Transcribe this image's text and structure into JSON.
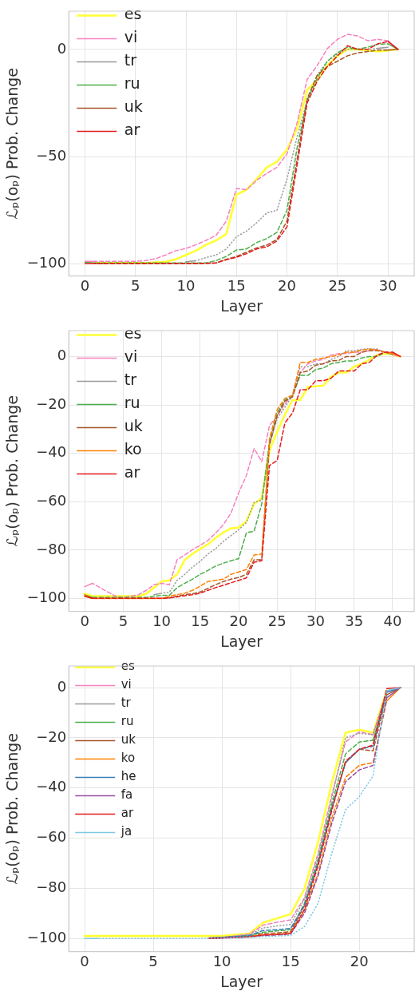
{
  "chart_data": [
    {
      "type": "line",
      "xlabel": "Layer",
      "ylabel": "ℒₚ(oₚ) Prob. Change",
      "x": [
        0,
        1,
        2,
        3,
        4,
        5,
        6,
        7,
        8,
        9,
        10,
        11,
        12,
        13,
        14,
        15,
        16,
        17,
        18,
        19,
        20,
        21,
        22,
        23,
        24,
        25,
        26,
        27,
        28,
        29,
        30,
        31
      ],
      "xlim": [
        -1.6,
        32.6
      ],
      "ylim": [
        -105.6,
        17.8
      ],
      "xticks": [
        0,
        5,
        10,
        15,
        20,
        25,
        30
      ],
      "yticks": [
        -100,
        -50,
        0
      ],
      "grid": true,
      "legend": "top left",
      "series": [
        {
          "name": "es",
          "color": "#ffff33",
          "line_style": "solid",
          "values": [
            null,
            -99.5,
            -99.5,
            -99.5,
            -99.5,
            -99.5,
            -99.5,
            -99.3,
            -99,
            -97.8,
            -95.8,
            -93.8,
            -91,
            -89,
            -86,
            -67.7,
            -65.4,
            -60.5,
            -55,
            -52.4,
            -46.7,
            -37,
            -19,
            -14,
            -7.5,
            -3,
            0,
            0,
            -0.5,
            -1,
            -0.5,
            0
          ]
        },
        {
          "name": "vi",
          "color": "#f781bf",
          "line_style": "dashed",
          "values": [
            -98.8,
            -98.8,
            -98.8,
            -98.8,
            -98.8,
            -98.8,
            -98.4,
            -97.5,
            -95.8,
            -93.8,
            -92.8,
            -91,
            -89,
            -86.6,
            -80,
            -64.8,
            -65.4,
            -61,
            -57.8,
            -55,
            -48.7,
            -34.3,
            -14,
            -7.5,
            0.4,
            4.7,
            7,
            6.3,
            4,
            4.7,
            4,
            0
          ]
        },
        {
          "name": "tr",
          "color": "#999999",
          "line_style": "dotted",
          "values": [
            null,
            null,
            null,
            null,
            null,
            null,
            null,
            null,
            null,
            null,
            -99,
            -98.5,
            -97,
            -95.8,
            -93,
            -87.3,
            -84.7,
            -80.8,
            -76.2,
            -75,
            -60.5,
            -40.8,
            -23.8,
            -12,
            -5.5,
            -2.2,
            0,
            0.2,
            0,
            0.5,
            1,
            null
          ]
        },
        {
          "name": "ru",
          "color": "#4daf4a",
          "line_style": "dashed",
          "values": [
            -99.2,
            -99.5,
            -99.5,
            -99.5,
            -99.5,
            -99.5,
            -99.5,
            -99.5,
            -99.5,
            -99.5,
            -99.5,
            -99.5,
            -99.5,
            -98.4,
            -96.5,
            -93.5,
            -93,
            -90,
            -88.2,
            -85.3,
            -75,
            -46,
            -23.8,
            -13.4,
            -5.5,
            -1.6,
            1,
            0,
            1,
            2.4,
            2.6,
            0
          ]
        },
        {
          "name": "uk",
          "color": "#a65628",
          "line_style": "dashed",
          "values": [
            null,
            -99.8,
            -99.8,
            -99.8,
            -99.8,
            -99.8,
            -99.8,
            -99.8,
            -99.8,
            -99.8,
            -99.8,
            -99.8,
            -99.7,
            -99.5,
            -97.8,
            -96.5,
            -94.5,
            -92.5,
            -91.2,
            -88.6,
            -80,
            -51.3,
            -23,
            -12,
            -8,
            -5.5,
            -3,
            -1.6,
            -1,
            -0.3,
            -0.3,
            0
          ]
        },
        {
          "name": "ar",
          "color": "#e41a1c",
          "line_style": "dashed",
          "values": [
            -99.8,
            -99.8,
            -99.8,
            -99.8,
            -99.8,
            -99.8,
            -99.8,
            -99.8,
            -99.8,
            -99.8,
            -99.8,
            -99.8,
            -99.7,
            -99.5,
            -98,
            -96.9,
            -95.2,
            -93,
            -92,
            -89.3,
            -82.7,
            -54,
            -25,
            -14.7,
            -8,
            -3,
            1.7,
            0,
            0,
            2.6,
            3.7,
            0
          ]
        }
      ]
    },
    {
      "type": "line",
      "xlabel": "Layer",
      "ylabel": "ℒₚ(oₚ) Prob. Change",
      "x": [
        0,
        1,
        2,
        3,
        4,
        5,
        6,
        7,
        8,
        9,
        10,
        11,
        12,
        13,
        14,
        15,
        16,
        17,
        18,
        19,
        20,
        21,
        22,
        23,
        24,
        25,
        26,
        27,
        28,
        29,
        30,
        31,
        32,
        33,
        34,
        35,
        36,
        37,
        38,
        39,
        40,
        41
      ],
      "xlim": [
        -2.06,
        42.8
      ],
      "ylim": [
        -105.3,
        10.7
      ],
      "xticks": [
        0,
        5,
        10,
        15,
        20,
        25,
        30,
        35,
        40
      ],
      "yticks": [
        -100,
        -80,
        -60,
        -40,
        -20,
        0
      ],
      "grid": true,
      "legend": "top left",
      "series": [
        {
          "name": "es",
          "color": "#ffff33",
          "line_style": "solid",
          "values": [
            -98,
            -99,
            -99,
            -99,
            -99,
            -99,
            -99,
            -99,
            -98,
            -95.5,
            -93,
            -92.5,
            -90,
            -84,
            -81.6,
            -79.4,
            -77.6,
            -75,
            -72.7,
            -71,
            -70.7,
            -68,
            -61,
            -58.5,
            -38.8,
            -31,
            -24,
            -18,
            -18,
            -12.5,
            -12.3,
            -12,
            -8.4,
            -6.6,
            -6.6,
            -4.2,
            -3,
            -1.2,
            0.6,
            1.2,
            0.8,
            0
          ]
        },
        {
          "name": "vi",
          "color": "#f781bf",
          "line_style": "dashed",
          "values": [
            -95.1,
            -93.7,
            -95.5,
            -97.3,
            -99,
            -99.6,
            -99,
            -98.4,
            -96.6,
            -94.3,
            -93.7,
            -94.3,
            -84,
            -82,
            -79.8,
            -78,
            -76,
            -73,
            -69.5,
            -64.7,
            -56.3,
            -49.2,
            -38,
            -43.4,
            -28.6,
            -24.5,
            -19.6,
            -16,
            -6.6,
            -3,
            -1.8,
            -1.2,
            0.6,
            1.2,
            1.2,
            1.8,
            1.8,
            2.4,
            3,
            1.8,
            0.8,
            0
          ]
        },
        {
          "name": "tr",
          "color": "#999999",
          "line_style": "dotted",
          "values": [
            null,
            null,
            null,
            null,
            null,
            null,
            null,
            null,
            null,
            -98.4,
            -97.8,
            -97.4,
            -92.5,
            -90,
            -87,
            -84.6,
            -81.6,
            -79.4,
            -76.4,
            -74,
            -71.6,
            -68.6,
            -60.3,
            -59.3,
            -36.4,
            -25.7,
            -21,
            -16,
            -4.2,
            -4.2,
            -3,
            -3,
            -1.2,
            0,
            2.4,
            2.4,
            3,
            3.2,
            3,
            1.8,
            0.8,
            null
          ]
        },
        {
          "name": "ru",
          "color": "#4daf4a",
          "line_style": "dashed",
          "values": [
            -98.5,
            -99.5,
            -99.5,
            -99.5,
            -99.5,
            -99.5,
            -99.5,
            -99.5,
            -99.5,
            -99,
            -98.7,
            -98.7,
            -95.5,
            -93.7,
            -92,
            -90,
            -88.4,
            -86.6,
            -85.4,
            -84.4,
            -83.5,
            -72.8,
            -72.2,
            -60.9,
            -35.2,
            -23.3,
            -18,
            -16,
            -7.8,
            -7.8,
            -5.4,
            -4.8,
            -3,
            -2.4,
            -1.8,
            -1.8,
            -0.6,
            0,
            0,
            1.8,
            1.2,
            null
          ]
        },
        {
          "name": "uk",
          "color": "#a65628",
          "line_style": "dashed",
          "values": [
            -99,
            -99.9,
            -99.9,
            -99.9,
            -99.9,
            -99.9,
            -99.9,
            -99.9,
            -99.9,
            -99.9,
            -99.9,
            -99.7,
            -99,
            -98.4,
            -98,
            -97.3,
            -95.8,
            -94.3,
            -93,
            -92,
            -91.3,
            -90,
            -84,
            -84,
            -36.4,
            -24.5,
            -18.5,
            -16.7,
            -6.6,
            -6,
            -3.6,
            -3,
            -1.8,
            -1.6,
            0,
            0,
            1.8,
            2.4,
            2.4,
            1.8,
            1.2,
            null
          ]
        },
        {
          "name": "ko",
          "color": "#ff7f00",
          "line_style": "dashed",
          "values": [
            -98.5,
            -100,
            -100,
            -100,
            -100,
            -100,
            -100,
            -100,
            -100,
            -100,
            -100,
            -99,
            -98.4,
            -97.8,
            -96.6,
            -94.9,
            -93,
            -92.5,
            -92,
            -90,
            -89,
            -88,
            -82,
            -81.6,
            -34,
            -22,
            -17.3,
            -16,
            -2.4,
            -2.4,
            -1.2,
            -0.6,
            0,
            0.6,
            1.8,
            1.8,
            2.7,
            3,
            2.7,
            1.8,
            1.2,
            0
          ]
        },
        {
          "name": "ar",
          "color": "#e41a1c",
          "line_style": "dashed",
          "values": [
            -99,
            -99.9,
            -99.9,
            -99.9,
            -99.9,
            -99.9,
            -99.9,
            -99.9,
            -99.9,
            -99.9,
            -99.9,
            -99.8,
            -99.3,
            -98.8,
            -98.4,
            -97.8,
            -96.6,
            -95.5,
            -94.5,
            -93.5,
            -92.5,
            -91.5,
            -85,
            -84.4,
            -45,
            -43,
            -27.5,
            -23.3,
            -13.7,
            -13.7,
            -10,
            -10,
            -9,
            -6,
            -6,
            -6,
            -3,
            -2.4,
            0.6,
            1.8,
            1.8,
            0
          ]
        }
      ]
    },
    {
      "type": "line",
      "xlabel": "Layer",
      "ylabel": "ℒₚ(oₚ) Prob. Change",
      "x": [
        0,
        1,
        2,
        3,
        4,
        5,
        6,
        7,
        8,
        9,
        10,
        11,
        12,
        13,
        14,
        15,
        16,
        17,
        18,
        19,
        20,
        21,
        22,
        23
      ],
      "xlim": [
        -1.15,
        24
      ],
      "ylim": [
        -105.2,
        8.6
      ],
      "xticks": [
        0,
        5,
        10,
        15,
        20
      ],
      "yticks": [
        -100,
        -80,
        -60,
        -40,
        -20,
        0
      ],
      "grid": true,
      "legend": "top left",
      "series": [
        {
          "name": "es",
          "color": "#ffff33",
          "line_style": "solid",
          "values": [
            -99,
            -99,
            -99,
            -99,
            -99,
            -99,
            -99,
            -99,
            -99,
            -99,
            -99,
            -98.5,
            -98,
            -93.7,
            -92,
            -90.3,
            -80.3,
            -61.5,
            -38,
            -18,
            -16.8,
            -18,
            -1.2,
            null
          ]
        },
        {
          "name": "vi",
          "color": "#f781bf",
          "line_style": "dashed",
          "values": [
            null,
            null,
            null,
            null,
            null,
            null,
            null,
            null,
            null,
            -99.8,
            -99.5,
            -99,
            -98.2,
            -94.7,
            -93.5,
            -92.6,
            -83.8,
            -66,
            -42.8,
            -21.7,
            -17.6,
            -18.8,
            -1.8,
            null
          ]
        },
        {
          "name": "tr",
          "color": "#999999",
          "line_style": "dotted",
          "values": [
            null,
            null,
            null,
            null,
            null,
            null,
            null,
            null,
            null,
            -99.8,
            -99.5,
            -99,
            -98.5,
            -95.8,
            -95,
            -94.4,
            -84.4,
            -67.4,
            -44,
            -20,
            -18.2,
            -18.8,
            -1.8,
            0
          ]
        },
        {
          "name": "ru",
          "color": "#4daf4a",
          "line_style": "dashed",
          "values": [
            null,
            null,
            null,
            null,
            null,
            null,
            null,
            null,
            null,
            null,
            null,
            -99.3,
            -99,
            -97.5,
            -97,
            -96.5,
            -86.1,
            -68.6,
            -46.3,
            -26.4,
            -21.7,
            -21,
            -2.9,
            null
          ]
        },
        {
          "name": "uk",
          "color": "#a65628",
          "line_style": "dashed",
          "values": [
            null,
            null,
            null,
            null,
            null,
            null,
            null,
            null,
            null,
            -99.8,
            -99.6,
            -99.4,
            -99.2,
            -98,
            -97.8,
            -97.3,
            -87,
            -70,
            -48,
            -29.9,
            -24.6,
            -25.2,
            -2.9,
            0
          ]
        },
        {
          "name": "ko",
          "color": "#ff7f00",
          "line_style": "dashed",
          "values": [
            null,
            null,
            null,
            null,
            null,
            null,
            null,
            null,
            null,
            null,
            null,
            null,
            -99.3,
            -98.6,
            -98.3,
            -97.8,
            -89,
            -74,
            -52,
            -35.8,
            -31,
            -29.9,
            -5.3,
            0
          ]
        },
        {
          "name": "he",
          "color": "#377eb8",
          "line_style": "dashed",
          "values": [
            null,
            null,
            null,
            null,
            null,
            null,
            null,
            null,
            null,
            -99.8,
            -99.6,
            -99.2,
            -98.8,
            -96.8,
            -96.5,
            -96,
            -86.8,
            -70,
            -48,
            -29.9,
            -24.6,
            -23.4,
            -1.8,
            0
          ]
        },
        {
          "name": "fa",
          "color": "#984ea3",
          "line_style": "dashed",
          "values": [
            null,
            null,
            null,
            null,
            null,
            null,
            null,
            null,
            null,
            -99.9,
            -99.8,
            -99.6,
            -99.4,
            -98.8,
            -98.6,
            -98.2,
            -90,
            -75,
            -54,
            -37.5,
            -32.8,
            -31,
            -4.1,
            0
          ]
        },
        {
          "name": "ar",
          "color": "#e41a1c",
          "line_style": "dashed",
          "values": [
            null,
            null,
            null,
            null,
            null,
            null,
            null,
            null,
            null,
            -99.9,
            -99.8,
            -99.6,
            -99.4,
            -98.6,
            -98.4,
            -98,
            -88.5,
            -71,
            -49,
            -29.3,
            -24.6,
            -22.9,
            -0.4,
            0
          ]
        },
        {
          "name": "ja",
          "color": "#7ec8e3",
          "line_style": "dotted",
          "values": [
            -100,
            -100,
            -100,
            -100,
            -100,
            -100,
            -100,
            -100,
            -100,
            -99.9,
            -99.8,
            -99.7,
            -99.5,
            -99.3,
            -99,
            -98.8,
            -95.3,
            -86,
            -66,
            -48.7,
            -43.4,
            -35.2,
            -1.2,
            0
          ]
        }
      ]
    }
  ]
}
